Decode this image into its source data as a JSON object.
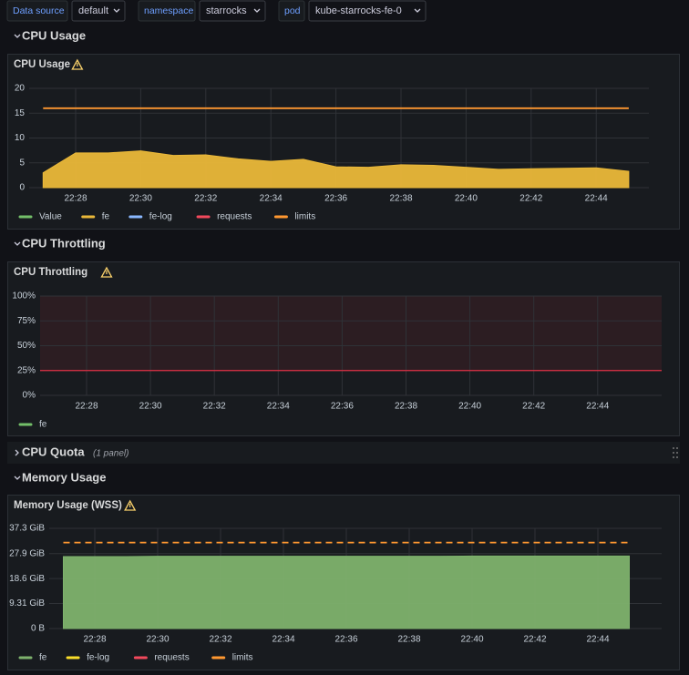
{
  "variables": [
    {
      "label": "Data source",
      "value": "default"
    },
    {
      "label": "namespace",
      "value": "starrocks"
    },
    {
      "label": "pod",
      "value": "kube-starrocks-fe-0"
    }
  ],
  "rows": [
    {
      "title": "CPU Usage"
    },
    {
      "title": "CPU Throttling"
    },
    {
      "title": "CPU Quota",
      "note": "(1 panel)"
    },
    {
      "title": "Memory Usage"
    }
  ],
  "panels": [
    {
      "type": "area",
      "title": "CPU Usage",
      "x": [
        "22:27",
        "22:28",
        "22:29",
        "22:30",
        "22:31",
        "22:32",
        "22:33",
        "22:34",
        "22:35",
        "22:36",
        "22:37",
        "22:38",
        "22:39",
        "22:40",
        "22:41",
        "22:42",
        "22:43",
        "22:44",
        "22:45"
      ],
      "xticks": [
        "22:28",
        "22:30",
        "22:32",
        "22:34",
        "22:36",
        "22:38",
        "22:40",
        "22:42",
        "22:44"
      ],
      "ylim": [
        0,
        20
      ],
      "yticks": [
        0,
        5,
        10,
        15,
        20
      ],
      "series": [
        {
          "name": "Value",
          "color": "#73bf69"
        },
        {
          "name": "fe",
          "color": "#eab839",
          "fill": true,
          "values": [
            3,
            7,
            7,
            7.4,
            6.5,
            6.6,
            5.8,
            5.3,
            5.7,
            4.2,
            4.1,
            4.6,
            4.5,
            4.1,
            3.7,
            3.8,
            3.9,
            4.0,
            3.3
          ]
        },
        {
          "name": "fe-log",
          "color": "#8ab8ff"
        },
        {
          "name": "requests",
          "color": "#f2495c"
        },
        {
          "name": "limits",
          "color": "#ff9830",
          "values": [
            16,
            16,
            16,
            16,
            16,
            16,
            16,
            16,
            16,
            16,
            16,
            16,
            16,
            16,
            16,
            16,
            16,
            16,
            16
          ]
        }
      ]
    },
    {
      "type": "area",
      "title": "CPU Throttling",
      "xticks": [
        "22:28",
        "22:30",
        "22:32",
        "22:34",
        "22:36",
        "22:38",
        "22:40",
        "22:42",
        "22:44"
      ],
      "ylim": [
        0,
        100
      ],
      "yticks": [
        {
          "value": 0,
          "label": "0%"
        },
        {
          "value": 25,
          "label": "25%"
        },
        {
          "value": 50,
          "label": "50%"
        },
        {
          "value": 75,
          "label": "75%"
        },
        {
          "value": 100,
          "label": "100%"
        }
      ],
      "threshold": {
        "value": 25,
        "color": "#e02f44"
      },
      "series": [
        {
          "name": "fe",
          "color": "#73bf69"
        }
      ]
    },
    {
      "type": "area",
      "title": "Memory Usage (WSS)",
      "x": [
        "22:27",
        "22:28",
        "22:29",
        "22:30",
        "22:31",
        "22:32",
        "22:33",
        "22:34",
        "22:35",
        "22:36",
        "22:37",
        "22:38",
        "22:39",
        "22:40",
        "22:41",
        "22:42",
        "22:43",
        "22:44",
        "22:45"
      ],
      "xticks": [
        "22:28",
        "22:30",
        "22:32",
        "22:34",
        "22:36",
        "22:38",
        "22:40",
        "22:42",
        "22:44"
      ],
      "ylim": [
        0,
        37.3
      ],
      "yticks": [
        {
          "value": 0,
          "label": "0 B"
        },
        {
          "value": 9.31,
          "label": "9.31 GiB"
        },
        {
          "value": 18.6,
          "label": "18.6 GiB"
        },
        {
          "value": 27.9,
          "label": "27.9 GiB"
        },
        {
          "value": 37.3,
          "label": "37.3 GiB"
        }
      ],
      "series": [
        {
          "name": "fe",
          "color": "#7eb26d",
          "fill": true,
          "values": [
            26.8,
            26.8,
            26.8,
            26.9,
            26.9,
            26.9,
            26.9,
            26.9,
            26.9,
            26.9,
            26.9,
            26.9,
            26.9,
            27.0,
            27.0,
            27.0,
            27.0,
            27.0,
            27.0
          ]
        },
        {
          "name": "fe-log",
          "color": "#fade2a"
        },
        {
          "name": "requests",
          "color": "#f2495c"
        },
        {
          "name": "limits",
          "color": "#ff9830",
          "style": "dashed",
          "values": [
            32,
            32,
            32,
            32,
            32,
            32,
            32,
            32,
            32,
            32,
            32,
            32,
            32,
            32,
            32,
            32,
            32,
            32,
            32
          ]
        }
      ]
    }
  ]
}
